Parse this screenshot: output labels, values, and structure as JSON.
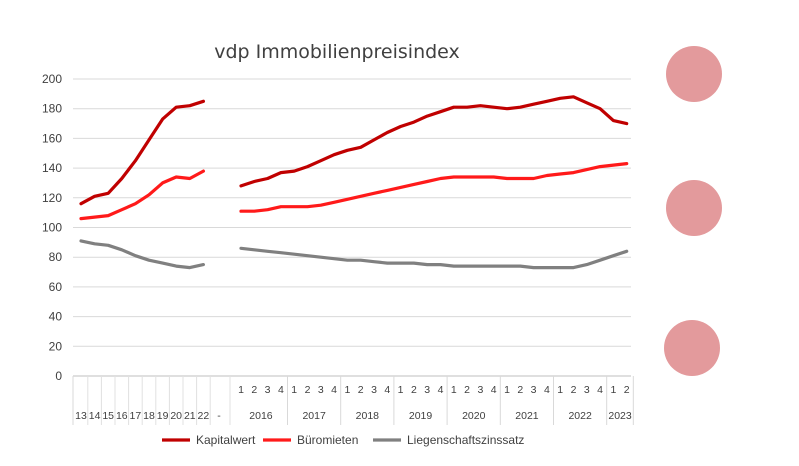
{
  "chart_data": {
    "type": "line",
    "title": "vdp Immobilienpreisindex",
    "xlabel": "",
    "ylabel": "",
    "ylim": [
      0,
      200
    ],
    "yticks": [
      0,
      20,
      40,
      60,
      80,
      100,
      120,
      140,
      160,
      180,
      200
    ],
    "grid": true,
    "legend_position": "bottom",
    "annual_labels": [
      "13",
      "14",
      "15",
      "16",
      "17",
      "18",
      "19",
      "20",
      "21",
      "22"
    ],
    "gap_label": "-",
    "quarter_labels": [
      "1",
      "2",
      "3",
      "4",
      "1",
      "2",
      "3",
      "4",
      "1",
      "2",
      "3",
      "4",
      "1",
      "2",
      "3",
      "4",
      "1",
      "2",
      "3",
      "4",
      "1",
      "2",
      "3",
      "4",
      "1",
      "2",
      "3",
      "4",
      "1",
      "2"
    ],
    "year_labels": [
      "2016",
      "2017",
      "2018",
      "2019",
      "2020",
      "2021",
      "2022",
      "2023"
    ],
    "series": [
      {
        "name": "Kapitalwert",
        "color": "#c00000",
        "annual": [
          116,
          121,
          123,
          133,
          145,
          159,
          173,
          181,
          182,
          185
        ],
        "quarterly": [
          128,
          131,
          133,
          137,
          138,
          141,
          145,
          149,
          152,
          154,
          159,
          164,
          168,
          171,
          175,
          178,
          181,
          181,
          182,
          181,
          180,
          181,
          183,
          185,
          187,
          188,
          184,
          180,
          172,
          170
        ]
      },
      {
        "name": "Büromieten",
        "color": "#ff1a1a",
        "annual": [
          106,
          107,
          108,
          112,
          116,
          122,
          130,
          134,
          133,
          138
        ],
        "quarterly": [
          111,
          111,
          112,
          114,
          114,
          114,
          115,
          117,
          119,
          121,
          123,
          125,
          127,
          129,
          131,
          133,
          134,
          134,
          134,
          134,
          133,
          133,
          133,
          135,
          136,
          137,
          139,
          141,
          142,
          143
        ]
      },
      {
        "name": "Liegenschaftszinssatz",
        "color": "#808080",
        "annual": [
          91,
          89,
          88,
          85,
          81,
          78,
          76,
          74,
          73,
          75
        ],
        "quarterly": [
          86,
          85,
          84,
          83,
          82,
          81,
          80,
          79,
          78,
          78,
          77,
          76,
          76,
          76,
          75,
          75,
          74,
          74,
          74,
          74,
          74,
          74,
          73,
          73,
          73,
          73,
          75,
          78,
          81,
          84
        ]
      }
    ]
  },
  "decor": {
    "circle_color": "#e39a9c",
    "circle_count": 3
  }
}
